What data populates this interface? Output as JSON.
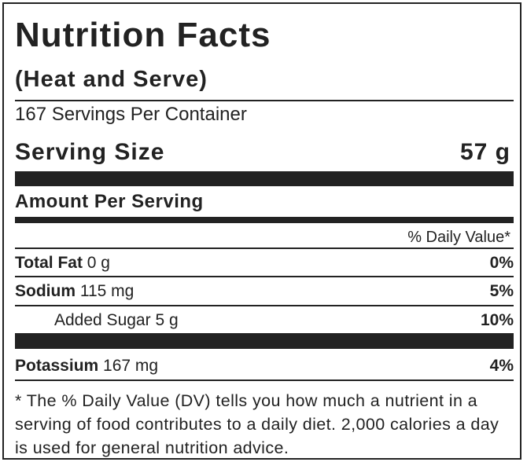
{
  "title": "Nutrition Facts",
  "subtitle": "(Heat and Serve)",
  "servings": "167 Servings Per Container",
  "serving_size": {
    "label": "Serving Size",
    "value": "57 g"
  },
  "amount_per_serving": "Amount Per Serving",
  "daily_value_header": "% Daily Value*",
  "nutrients": [
    {
      "name": "Total Fat",
      "amount": "0 g",
      "dv": "0%"
    },
    {
      "name": "Sodium",
      "amount": "115 mg",
      "dv": "5%"
    },
    {
      "name": "Added Sugar",
      "amount": "5 g",
      "dv": "10%"
    },
    {
      "name": "Potassium",
      "amount": "167 mg",
      "dv": "4%"
    }
  ],
  "footnote": "* The % Daily Value (DV) tells you how much a nutrient in a serving of food contributes to a daily diet. 2,000 calories a day is used for general nutrition advice."
}
